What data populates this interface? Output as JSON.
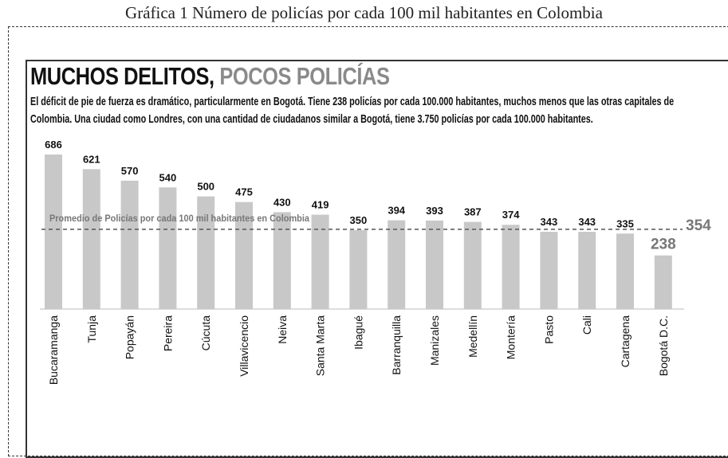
{
  "chart_data": {
    "type": "bar",
    "caption": "Gráfica 1 Número de policías por cada 100 mil habitantes en Colombia",
    "title": [
      "MUCHOS DELITOS,",
      "POCOS POLICÍAS"
    ],
    "subtitle": "El déficit de pie de fuerza es dramático, particularmente en Bogotá. Tiene 238 policías por cada 100.000 habitantes, muchos menos que las otras capitales de Colombia. Una ciudad como Londres, con una cantidad de ciudadanos similar a Bogotá, tiene 3.750 policías por cada 100.000 habitantes.",
    "categories": [
      "Bucaramanga",
      "Tunja",
      "Popayán",
      "Pereira",
      "Cúcuta",
      "Villavicencio",
      "Neiva",
      "Santa Marta",
      "Ibagué",
      "Barranquilla",
      "Manizales",
      "Medellín",
      "Montería",
      "Pasto",
      "Cali",
      "Cartagena",
      "Bogotá D.C."
    ],
    "values": [
      686,
      621,
      570,
      540,
      500,
      475,
      430,
      419,
      350,
      394,
      393,
      387,
      374,
      343,
      343,
      335,
      238
    ],
    "color": "#c8c8c8",
    "reference_line": {
      "value": 354,
      "label": "Promedio de Policías por cada 100 mil habitantes en Colombia"
    }
  }
}
